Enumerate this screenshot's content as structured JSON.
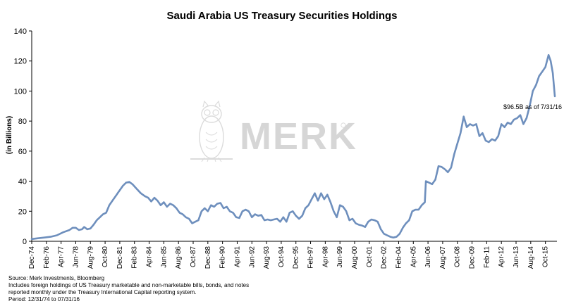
{
  "chart_data": {
    "type": "line",
    "title": "Saudi Arabia US Treasury Securities Holdings",
    "ylabel": "(in Billions)",
    "xlabel": "",
    "ylim": [
      0,
      140
    ],
    "yticks": [
      0,
      20,
      40,
      60,
      80,
      100,
      120,
      140
    ],
    "grid": false,
    "legend": "none",
    "line_color": "#6e8fbd",
    "xlim": [
      "1974-12",
      "2016-09"
    ],
    "xtick_labels": [
      {
        "label": "Dec-74",
        "date": "1974-12"
      },
      {
        "label": "Feb-76",
        "date": "1976-02"
      },
      {
        "label": "Apr-77",
        "date": "1977-04"
      },
      {
        "label": "Jun-78",
        "date": "1978-06"
      },
      {
        "label": "Aug-79",
        "date": "1979-08"
      },
      {
        "label": "Oct-80",
        "date": "1980-10"
      },
      {
        "label": "Dec-81",
        "date": "1981-12"
      },
      {
        "label": "Feb-83",
        "date": "1983-02"
      },
      {
        "label": "Apr-84",
        "date": "1984-04"
      },
      {
        "label": "Jun-85",
        "date": "1985-06"
      },
      {
        "label": "Aug-86",
        "date": "1986-08"
      },
      {
        "label": "Oct-87",
        "date": "1987-10"
      },
      {
        "label": "Dec-88",
        "date": "1988-12"
      },
      {
        "label": "Feb-90",
        "date": "1990-02"
      },
      {
        "label": "Apr-91",
        "date": "1991-04"
      },
      {
        "label": "Jun-92",
        "date": "1992-06"
      },
      {
        "label": "Aug-93",
        "date": "1993-08"
      },
      {
        "label": "Oct-94",
        "date": "1994-10"
      },
      {
        "label": "Dec-95",
        "date": "1995-12"
      },
      {
        "label": "Feb-97",
        "date": "1997-02"
      },
      {
        "label": "Apr-98",
        "date": "1998-04"
      },
      {
        "label": "Jun-99",
        "date": "1999-06"
      },
      {
        "label": "Aug-00",
        "date": "2000-08"
      },
      {
        "label": "Oct-01",
        "date": "2001-10"
      },
      {
        "label": "Dec-02",
        "date": "2002-12"
      },
      {
        "label": "Feb-04",
        "date": "2004-02"
      },
      {
        "label": "Apr-05",
        "date": "2005-04"
      },
      {
        "label": "Jun-06",
        "date": "2006-06"
      },
      {
        "label": "Aug-07",
        "date": "2007-08"
      },
      {
        "label": "Oct-08",
        "date": "2008-10"
      },
      {
        "label": "Dec-09",
        "date": "2009-12"
      },
      {
        "label": "Feb-11",
        "date": "2011-02"
      },
      {
        "label": "Apr-12",
        "date": "2012-04"
      },
      {
        "label": "Jun-13",
        "date": "2013-06"
      },
      {
        "label": "Aug-14",
        "date": "2014-08"
      },
      {
        "label": "Oct-15",
        "date": "2015-10"
      }
    ],
    "series": [
      {
        "points": [
          [
            "1974-12",
            1.5
          ],
          [
            "1975-06",
            2
          ],
          [
            "1975-12",
            2.5
          ],
          [
            "1976-06",
            3
          ],
          [
            "1976-12",
            4
          ],
          [
            "1977-06",
            6
          ],
          [
            "1977-12",
            7.5
          ],
          [
            "1978-03",
            9
          ],
          [
            "1978-06",
            9
          ],
          [
            "1978-09",
            7.5
          ],
          [
            "1978-12",
            8
          ],
          [
            "1979-02",
            9.5
          ],
          [
            "1979-05",
            8
          ],
          [
            "1979-08",
            8.5
          ],
          [
            "1979-11",
            11
          ],
          [
            "1980-02",
            14
          ],
          [
            "1980-05",
            16
          ],
          [
            "1980-08",
            18
          ],
          [
            "1980-11",
            19
          ],
          [
            "1981-02",
            24
          ],
          [
            "1981-05",
            27
          ],
          [
            "1981-08",
            30
          ],
          [
            "1981-11",
            33
          ],
          [
            "1982-03",
            37
          ],
          [
            "1982-06",
            39
          ],
          [
            "1982-09",
            39.5
          ],
          [
            "1982-12",
            38
          ],
          [
            "1983-04",
            35
          ],
          [
            "1983-08",
            32
          ],
          [
            "1983-12",
            30
          ],
          [
            "1984-03",
            29
          ],
          [
            "1984-06",
            26.5
          ],
          [
            "1984-09",
            29
          ],
          [
            "1984-12",
            27
          ],
          [
            "1985-03",
            24
          ],
          [
            "1985-06",
            26
          ],
          [
            "1985-09",
            23
          ],
          [
            "1985-12",
            25
          ],
          [
            "1986-03",
            24
          ],
          [
            "1986-06",
            22
          ],
          [
            "1986-09",
            19
          ],
          [
            "1986-12",
            18
          ],
          [
            "1987-03",
            16
          ],
          [
            "1987-06",
            15
          ],
          [
            "1987-09",
            12
          ],
          [
            "1987-12",
            13
          ],
          [
            "1988-03",
            14
          ],
          [
            "1988-06",
            20
          ],
          [
            "1988-09",
            22
          ],
          [
            "1988-12",
            20
          ],
          [
            "1989-03",
            24
          ],
          [
            "1989-06",
            23
          ],
          [
            "1989-09",
            25
          ],
          [
            "1989-12",
            25.5
          ],
          [
            "1990-03",
            22
          ],
          [
            "1990-06",
            23
          ],
          [
            "1990-09",
            20
          ],
          [
            "1990-12",
            19
          ],
          [
            "1991-03",
            16
          ],
          [
            "1991-06",
            15.5
          ],
          [
            "1991-09",
            20
          ],
          [
            "1991-12",
            21
          ],
          [
            "1992-03",
            20
          ],
          [
            "1992-06",
            16
          ],
          [
            "1992-09",
            18
          ],
          [
            "1992-12",
            17
          ],
          [
            "1993-03",
            17.5
          ],
          [
            "1993-06",
            14
          ],
          [
            "1993-09",
            14.5
          ],
          [
            "1993-12",
            14
          ],
          [
            "1994-03",
            14.5
          ],
          [
            "1994-06",
            15
          ],
          [
            "1994-09",
            13
          ],
          [
            "1994-12",
            16
          ],
          [
            "1995-03",
            13
          ],
          [
            "1995-06",
            19
          ],
          [
            "1995-09",
            20
          ],
          [
            "1995-12",
            17
          ],
          [
            "1996-03",
            15
          ],
          [
            "1996-06",
            17
          ],
          [
            "1996-09",
            22
          ],
          [
            "1996-12",
            24
          ],
          [
            "1997-03",
            28
          ],
          [
            "1997-06",
            32
          ],
          [
            "1997-09",
            27
          ],
          [
            "1997-12",
            32
          ],
          [
            "1998-03",
            28
          ],
          [
            "1998-06",
            31
          ],
          [
            "1998-09",
            26
          ],
          [
            "1998-12",
            20
          ],
          [
            "1999-03",
            16
          ],
          [
            "1999-06",
            24
          ],
          [
            "1999-09",
            23
          ],
          [
            "1999-12",
            20
          ],
          [
            "2000-03",
            14
          ],
          [
            "2000-06",
            15
          ],
          [
            "2000-09",
            12
          ],
          [
            "2000-12",
            11
          ],
          [
            "2001-03",
            10.5
          ],
          [
            "2001-06",
            9.5
          ],
          [
            "2001-09",
            13
          ],
          [
            "2001-12",
            14.5
          ],
          [
            "2002-03",
            14
          ],
          [
            "2002-06",
            13
          ],
          [
            "2002-09",
            8
          ],
          [
            "2002-12",
            5
          ],
          [
            "2003-03",
            4
          ],
          [
            "2003-06",
            3
          ],
          [
            "2003-09",
            2.5
          ],
          [
            "2003-12",
            3
          ],
          [
            "2004-03",
            5
          ],
          [
            "2004-06",
            9
          ],
          [
            "2004-09",
            12
          ],
          [
            "2004-12",
            14
          ],
          [
            "2005-03",
            20
          ],
          [
            "2005-06",
            21
          ],
          [
            "2005-09",
            21
          ],
          [
            "2005-12",
            24
          ],
          [
            "2006-03",
            26
          ],
          [
            "2006-04",
            40
          ],
          [
            "2006-07",
            39
          ],
          [
            "2006-10",
            38
          ],
          [
            "2007-01",
            41
          ],
          [
            "2007-04",
            50
          ],
          [
            "2007-07",
            49.5
          ],
          [
            "2007-10",
            48
          ],
          [
            "2008-01",
            46
          ],
          [
            "2008-04",
            49
          ],
          [
            "2008-07",
            58
          ],
          [
            "2008-10",
            65
          ],
          [
            "2009-01",
            72
          ],
          [
            "2009-04",
            83
          ],
          [
            "2009-07",
            76
          ],
          [
            "2009-10",
            78
          ],
          [
            "2010-01",
            77
          ],
          [
            "2010-04",
            78
          ],
          [
            "2010-07",
            70
          ],
          [
            "2010-10",
            72
          ],
          [
            "2011-01",
            67
          ],
          [
            "2011-04",
            66
          ],
          [
            "2011-07",
            68
          ],
          [
            "2011-10",
            67
          ],
          [
            "2012-01",
            70
          ],
          [
            "2012-04",
            78
          ],
          [
            "2012-07",
            76
          ],
          [
            "2012-10",
            79
          ],
          [
            "2013-01",
            78
          ],
          [
            "2013-04",
            81
          ],
          [
            "2013-07",
            82
          ],
          [
            "2013-10",
            84
          ],
          [
            "2014-01",
            78
          ],
          [
            "2014-04",
            82
          ],
          [
            "2014-07",
            90
          ],
          [
            "2014-10",
            100
          ],
          [
            "2015-01",
            104
          ],
          [
            "2015-04",
            110
          ],
          [
            "2015-07",
            113
          ],
          [
            "2015-10",
            116
          ],
          [
            "2016-01",
            124
          ],
          [
            "2016-03",
            120
          ],
          [
            "2016-05",
            112
          ],
          [
            "2016-07",
            96.5
          ]
        ]
      }
    ],
    "annotations": [
      {
        "text": "$96.5B as of 7/31/16",
        "date": "2016-07",
        "y": 96.5
      }
    ]
  },
  "watermark": {
    "text": "MERK",
    "icon": "owl-icon"
  },
  "footnotes": [
    "Source: Merk Investments, Bloomberg",
    "Includes foreign holdings of US Treasury marketable and non-marketable bills, bonds, and notes",
    "reported monthly under the Treasury International Capital reporting system.",
    "Period: 12/31/74 to 07/31/16"
  ]
}
